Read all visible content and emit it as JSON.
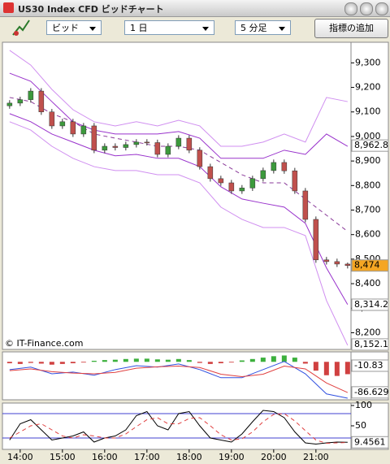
{
  "window": {
    "title": "US30 Index CFD ビッドチャート"
  },
  "toolbar": {
    "price_type": "ビッド",
    "period": "1 日",
    "interval": "5 分足",
    "add_indicator": "指標の追加"
  },
  "chart_data": [
    {
      "type": "candlestick",
      "watermark": "© IT-Finance.com",
      "xlim": [
        13.58,
        21.83
      ],
      "ylim": [
        8132,
        9384
      ],
      "yticks": [
        {
          "value": 9300,
          "label": "9,300"
        },
        {
          "value": 9200,
          "label": "9,200"
        },
        {
          "value": 9100,
          "label": "9,100"
        },
        {
          "value": 9000,
          "label": "9,000"
        },
        {
          "value": 8900,
          "label": "8,900"
        },
        {
          "value": 8800,
          "label": "8,800"
        },
        {
          "value": 8700,
          "label": "8,700"
        },
        {
          "value": 8600,
          "label": "8,600"
        },
        {
          "value": 8500,
          "label": "8,500"
        },
        {
          "value": 8400,
          "label": "8,400"
        },
        {
          "value": 8300,
          "label": "8,300"
        },
        {
          "value": 8200,
          "label": "8,200"
        }
      ],
      "up_color": "#3c9a3c",
      "down_color": "#c0504d",
      "x": [
        13.75,
        14,
        14.25,
        14.5,
        14.75,
        15,
        15.25,
        15.5,
        15.75,
        16,
        16.25,
        16.5,
        16.75,
        17,
        17.25,
        17.5,
        17.75,
        18,
        18.25,
        18.5,
        18.75,
        19,
        19.25,
        19.5,
        19.75,
        20,
        20.25,
        20.5,
        20.75,
        21,
        21.25,
        21.5,
        21.75
      ],
      "open": [
        9125,
        9136,
        9150,
        9185,
        9100,
        9043,
        9060,
        9010,
        9043,
        8944,
        8960,
        8955,
        8967,
        8977,
        8975,
        8927,
        8960,
        8993,
        8944,
        8877,
        8828,
        8811,
        8778,
        8790,
        8828,
        8861,
        8894,
        8860,
        8778,
        8662,
        8497,
        8490,
        8480
      ],
      "high": [
        9148,
        9162,
        9197,
        9197,
        9112,
        9072,
        9072,
        9055,
        9055,
        8972,
        8972,
        8979,
        8989,
        8989,
        8987,
        8972,
        9005,
        9005,
        8956,
        8889,
        8840,
        8823,
        8802,
        8840,
        8873,
        8906,
        8906,
        8872,
        8790,
        8674,
        8509,
        8502,
        8486
      ],
      "low": [
        9113,
        9124,
        9138,
        9088,
        9031,
        9031,
        8998,
        8998,
        8932,
        8932,
        8943,
        8943,
        8955,
        8963,
        8915,
        8915,
        8948,
        8932,
        8865,
        8816,
        8799,
        8766,
        8766,
        8778,
        8816,
        8849,
        8848,
        8766,
        8650,
        8485,
        8478,
        8468,
        8462
      ],
      "close": [
        9136,
        9150,
        9185,
        9100,
        9043,
        9060,
        9010,
        9043,
        8944,
        8960,
        8955,
        8967,
        8977,
        8975,
        8927,
        8960,
        8993,
        8944,
        8877,
        8828,
        8811,
        8778,
        8790,
        8828,
        8861,
        8894,
        8860,
        8778,
        8662,
        8497,
        8490,
        8480,
        8474
      ],
      "overlay_x": [
        13.75,
        14.25,
        14.75,
        15.25,
        15.75,
        16.25,
        16.75,
        17.25,
        17.75,
        18.25,
        18.75,
        19.25,
        19.75,
        20.25,
        20.75,
        21.25,
        21.75
      ],
      "overlays": [
        {
          "color": "#d08ff0",
          "dash": false,
          "values": [
            9351,
            9291,
            9192,
            9109,
            9060,
            9043,
            9060,
            9043,
            9066,
            9043,
            8960,
            8960,
            8977,
            9010,
            8977,
            9159,
            9142
          ]
        },
        {
          "color": "#9933cc",
          "dash": false,
          "values": [
            9258,
            9225,
            9142,
            9060,
            9026,
            9010,
            9010,
            9010,
            9020,
            8993,
            8911,
            8911,
            8911,
            8944,
            8927,
            9010,
            8960
          ]
        },
        {
          "color": "#8a3a9a",
          "dash": true,
          "values": [
            9159,
            9142,
            9093,
            9060,
            9010,
            8993,
            8977,
            8960,
            8960,
            8944,
            8894,
            8844,
            8811,
            8811,
            8745,
            8679,
            8613
          ]
        },
        {
          "color": "#9933cc",
          "dash": false,
          "values": [
            9093,
            9060,
            9010,
            8977,
            8944,
            8921,
            8927,
            8911,
            8911,
            8877,
            8795,
            8745,
            8728,
            8712,
            8646,
            8464,
            8315
          ]
        },
        {
          "color": "#d08ff0",
          "dash": false,
          "values": [
            9060,
            9026,
            8960,
            8911,
            8877,
            8861,
            8861,
            8844,
            8844,
            8811,
            8712,
            8662,
            8629,
            8629,
            8596,
            8331,
            8149
          ]
        }
      ],
      "price_labels": [
        {
          "value": 8962.8,
          "label": "8,962.8",
          "color": "#7030a0",
          "background": "#ffffff"
        },
        {
          "value": 8474,
          "label": "8,474",
          "color": "#000000",
          "background": "#f5a623"
        },
        {
          "value": 8314.2,
          "label": "8,314.2",
          "color": "#7030a0",
          "background": "#ffffff"
        },
        {
          "value": 8152.1,
          "label": "8,152.1",
          "color": "#c080e0",
          "background": "#ffffff"
        }
      ]
    },
    {
      "type": "bar_line",
      "xlim": [
        13.58,
        21.83
      ],
      "ylim": [
        -107.7,
        28.3
      ],
      "bar_x": [
        13.75,
        14,
        14.25,
        14.5,
        14.75,
        15,
        15.25,
        15.5,
        15.75,
        16,
        16.25,
        16.5,
        16.75,
        17,
        17.25,
        17.5,
        17.75,
        18,
        18.25,
        18.5,
        18.75,
        19,
        19.25,
        19.5,
        19.75,
        20,
        20.25,
        20.5,
        20.75,
        21,
        21.25,
        21.5,
        21.75
      ],
      "bars": [
        -4,
        -6,
        -3,
        -5,
        -8,
        -6,
        -4,
        -2,
        3,
        5,
        6,
        8,
        9,
        9,
        7,
        6,
        8,
        5,
        -3,
        -6,
        -4,
        -2,
        4,
        8,
        12,
        16,
        18,
        12,
        -5,
        -25,
        -38,
        -40,
        -35
      ],
      "positive_color": "#3cb03c",
      "negative_color": "#d04040",
      "x": [
        13.75,
        14.25,
        14.75,
        15.25,
        15.75,
        16.25,
        16.75,
        17.25,
        17.75,
        18.25,
        18.75,
        19.25,
        19.75,
        20.25,
        20.75,
        21.25,
        21.75
      ],
      "series": [
        {
          "color": "#3050e0",
          "dash": false,
          "values": [
            -22,
            -15,
            -34,
            -29,
            -38,
            -22,
            -11,
            -15,
            -6,
            -22,
            -45,
            -45,
            -22,
            1,
            -34,
            -91,
            -103
          ]
        },
        {
          "color": "#e04040",
          "dash": false,
          "values": [
            -25,
            -20,
            -28,
            -32,
            -34,
            -30,
            -18,
            -14,
            -12,
            -16,
            -35,
            -42,
            -35,
            -12,
            -20,
            -60,
            -87
          ]
        }
      ],
      "price_labels": [
        {
          "value": -10.83,
          "label": "-10.83",
          "color": "#c03030",
          "background": "#ffffff"
        },
        {
          "value": -86.629,
          "label": "-86.629",
          "color": "#c03030",
          "background": "#ffffff"
        }
      ]
    },
    {
      "type": "line",
      "xlim": [
        13.58,
        21.83
      ],
      "ylim": [
        -8,
        106
      ],
      "yticks": [
        100,
        50
      ],
      "xticks": [
        {
          "value": 14,
          "label": "14:00"
        },
        {
          "value": 15,
          "label": "15:00"
        },
        {
          "value": 16,
          "label": "16:00"
        },
        {
          "value": 17,
          "label": "17:00"
        },
        {
          "value": 18,
          "label": "18:00"
        },
        {
          "value": 19,
          "label": "19:00"
        },
        {
          "value": 20,
          "label": "20:00"
        },
        {
          "value": 21,
          "label": "21:00"
        }
      ],
      "reference_lines": [
        80,
        20
      ],
      "reference_color": "#4040d0",
      "x": [
        13.75,
        14,
        14.25,
        14.5,
        14.75,
        15,
        15.25,
        15.5,
        15.75,
        16,
        16.25,
        16.5,
        16.75,
        17,
        17.25,
        17.5,
        17.75,
        18,
        18.25,
        18.5,
        18.75,
        19,
        19.25,
        19.5,
        19.75,
        20,
        20.25,
        20.5,
        20.75,
        21,
        21.25,
        21.5,
        21.75
      ],
      "series": [
        {
          "color": "#000000",
          "dash": false,
          "values": [
            15,
            55,
            65,
            40,
            15,
            20,
            25,
            35,
            10,
            20,
            25,
            40,
            75,
            85,
            50,
            40,
            80,
            85,
            50,
            20,
            15,
            10,
            30,
            60,
            88,
            85,
            70,
            35,
            8,
            5,
            8,
            10,
            9.4561
          ]
        },
        {
          "color": "#e04040",
          "dash": true,
          "values": [
            20,
            35,
            50,
            55,
            40,
            25,
            20,
            28,
            25,
            20,
            20,
            30,
            48,
            65,
            70,
            55,
            55,
            68,
            70,
            50,
            28,
            15,
            18,
            35,
            60,
            78,
            80,
            62,
            38,
            15,
            7,
            8,
            9
          ]
        }
      ],
      "price_labels": [
        {
          "value": 9.4561,
          "label": "9.4561",
          "color": "#000000",
          "background": "#ffffff"
        }
      ]
    }
  ]
}
